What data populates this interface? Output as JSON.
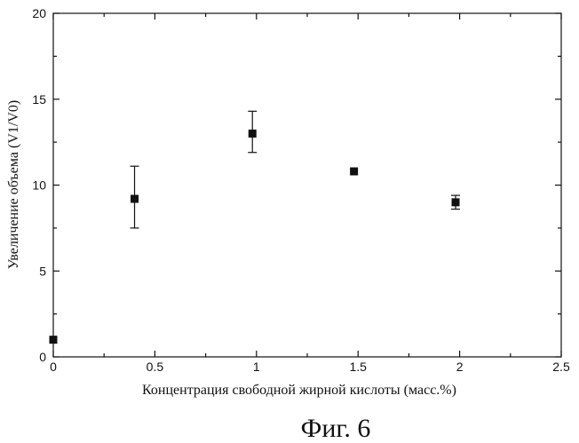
{
  "chart_data": {
    "type": "scatter",
    "xlabel": "Концентрация свободной жирной кислоты (масс.%)",
    "ylabel": "Увеличение объема (V1/V0)",
    "xlim": [
      0,
      2.5
    ],
    "ylim": [
      0,
      20
    ],
    "x_ticks": [
      0,
      0.5,
      1,
      1.5,
      2,
      2.5
    ],
    "x_tick_labels": [
      "0",
      "0.5",
      "1",
      "1.5",
      "2",
      "2.5"
    ],
    "y_ticks": [
      0,
      5,
      10,
      15,
      20
    ],
    "y_tick_labels": [
      "0",
      "5",
      "10",
      "15",
      "20"
    ],
    "points": [
      {
        "x": 0.0,
        "y": 1.0
      },
      {
        "x": 0.4,
        "y": 9.2,
        "err_low": 7.5,
        "err_high": 11.1
      },
      {
        "x": 0.98,
        "y": 13.0,
        "err_low": 11.9,
        "err_high": 14.3
      },
      {
        "x": 1.48,
        "y": 10.8
      },
      {
        "x": 1.98,
        "y": 9.0,
        "err_low": 8.6,
        "err_high": 9.4
      }
    ],
    "grid": false,
    "legend": "none"
  },
  "caption": "Фиг. 6"
}
